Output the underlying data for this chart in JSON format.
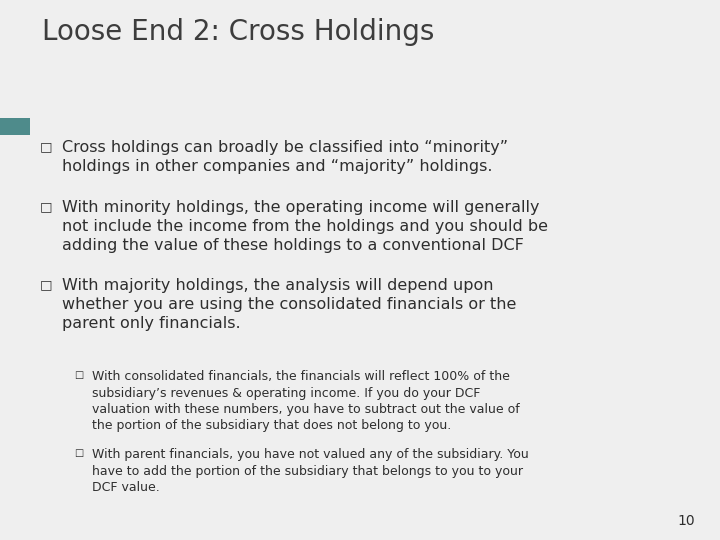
{
  "title": "Loose End 2: Cross Holdings",
  "title_color": "#3d3d3d",
  "title_fontsize": 20,
  "bg_color": "#efefef",
  "header_bar_color": "#4a5572",
  "header_bar_accent": "#4e8b8b",
  "bullet_color": "#2e2e2e",
  "bullet_fontsize": 11.5,
  "sub_bullet_fontsize": 9.0,
  "page_number": "10",
  "bullets": [
    {
      "text": "Cross holdings can broadly be classified into “minority”\nholdings in other companies and “majority” holdings.",
      "level": 1
    },
    {
      "text": "With minority holdings, the operating income will generally\nnot include the income from the holdings and you should be\nadding the value of these holdings to a conventional DCF",
      "level": 1
    },
    {
      "text": "With majority holdings, the analysis will depend upon\nwhether you are using the consolidated financials or the\nparent only financials.",
      "level": 1
    },
    {
      "text": "With consolidated financials, the financials will reflect 100% of the\nsubsidiary’s revenues & operating income. If you do your DCF\nvaluation with these numbers, you have to subtract out the value of\nthe portion of the subsidiary that does not belong to you.",
      "level": 2
    },
    {
      "text": "With parent financials, you have not valued any of the subsidiary. You\nhave to add the portion of the subsidiary that belongs to you to your\nDCF value.",
      "level": 2
    }
  ]
}
